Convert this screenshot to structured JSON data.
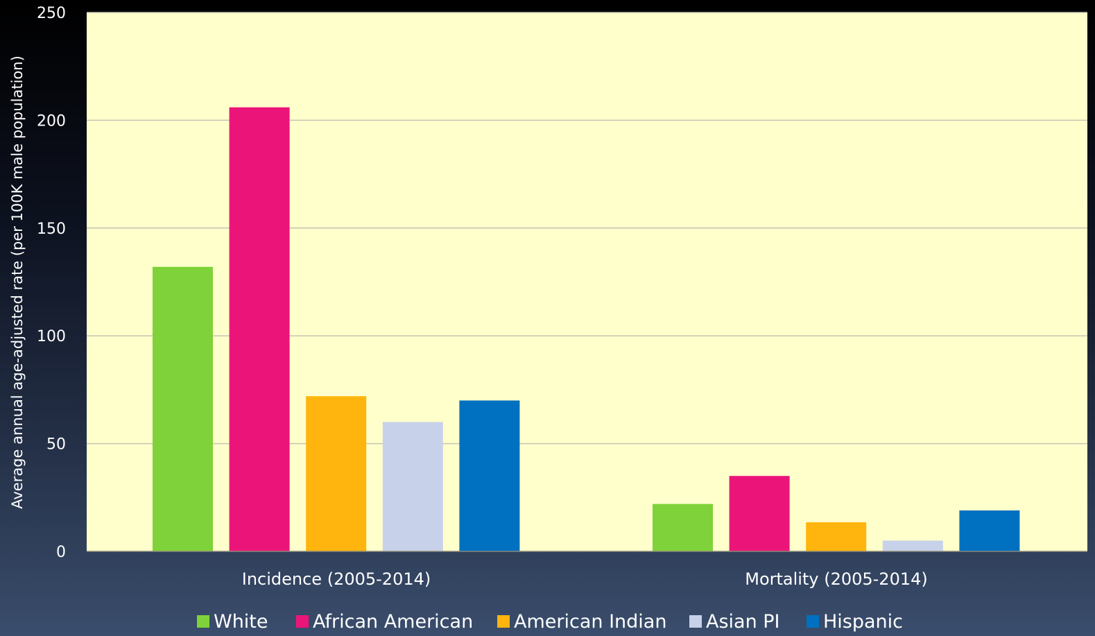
{
  "chart_data": {
    "type": "bar",
    "categories": [
      "Incidence (2005-2014)",
      "Mortality (2005-2014)"
    ],
    "series": [
      {
        "name": "White",
        "color": "#7fd23a",
        "values": [
          132,
          22
        ]
      },
      {
        "name": "African American",
        "color": "#eb1579",
        "values": [
          206,
          35
        ]
      },
      {
        "name": "American Indian",
        "color": "#ffb50d",
        "values": [
          72,
          13.5
        ]
      },
      {
        "name": "Asian PI",
        "color": "#c8d1ea",
        "values": [
          60,
          5
        ]
      },
      {
        "name": "Hispanic",
        "color": "#0070c0",
        "values": [
          70,
          19
        ]
      }
    ],
    "ylabel": "Average annual age-adjusted rate (per 100K male population)",
    "ylim": [
      0,
      250
    ],
    "yticks": [
      "0",
      "50",
      "100",
      "150",
      "200",
      "250"
    ],
    "grid": true,
    "legend": "bottom",
    "plot_background": "#ffffcc"
  }
}
